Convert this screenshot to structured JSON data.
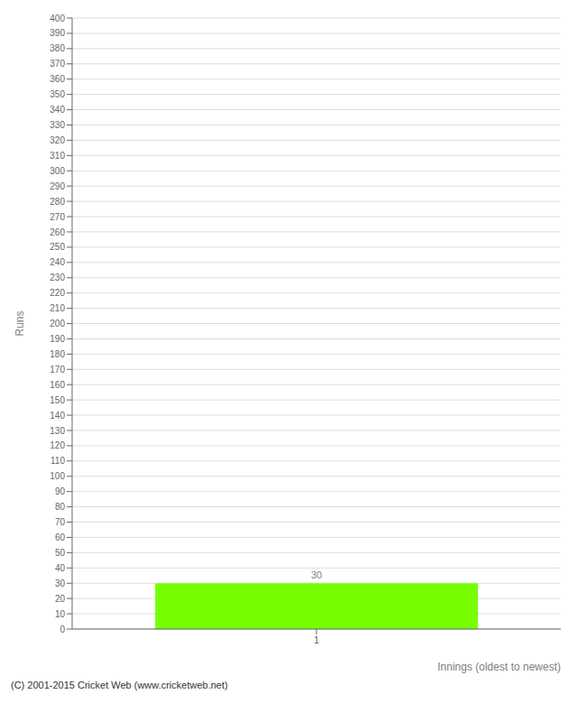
{
  "chart_data": {
    "type": "bar",
    "categories": [
      "1"
    ],
    "values": [
      30
    ],
    "color": "#77ff00",
    "xlabel": "Innings (oldest to newest)",
    "ylabel": "Runs",
    "ylim": [
      0,
      400
    ],
    "yticks": [
      0,
      10,
      20,
      30,
      40,
      50,
      60,
      70,
      80,
      90,
      100,
      110,
      120,
      130,
      140,
      150,
      160,
      170,
      180,
      190,
      200,
      210,
      220,
      230,
      240,
      250,
      260,
      270,
      280,
      290,
      300,
      310,
      320,
      330,
      340,
      350,
      360,
      370,
      380,
      390,
      400
    ],
    "grid": true,
    "data_labels": true,
    "annotations": [
      "(C) 2001-2015 Cricket Web (www.cricketweb.net)"
    ]
  }
}
